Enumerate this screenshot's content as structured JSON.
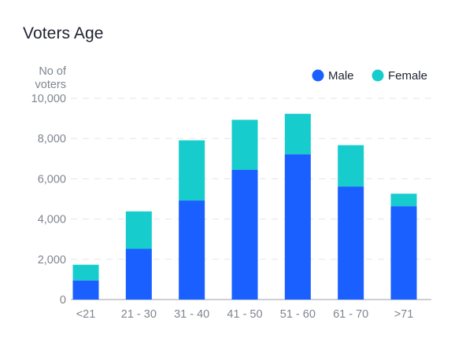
{
  "chart_data": {
    "type": "bar",
    "stacked": true,
    "title": "Voters Age",
    "ylabel": "No of voters",
    "xlabel": "",
    "categories": [
      "<21",
      "21-30",
      "31-40",
      "41-50",
      "51-60",
      "61-70",
      ">71"
    ],
    "series": [
      {
        "name": "Male",
        "color": "#1a5fff",
        "values": [
          950,
          2520,
          4920,
          6450,
          7220,
          5620,
          4640
        ]
      },
      {
        "name": "Female",
        "color": "#17cccc",
        "values": [
          780,
          1860,
          2990,
          2480,
          2010,
          2050,
          620
        ]
      }
    ],
    "ylim": [
      0,
      10000
    ],
    "yticks": [
      "0",
      "2,000",
      "4,000",
      "6,000",
      "8,000",
      "10,000"
    ],
    "grid": true,
    "legend": "top-right"
  }
}
